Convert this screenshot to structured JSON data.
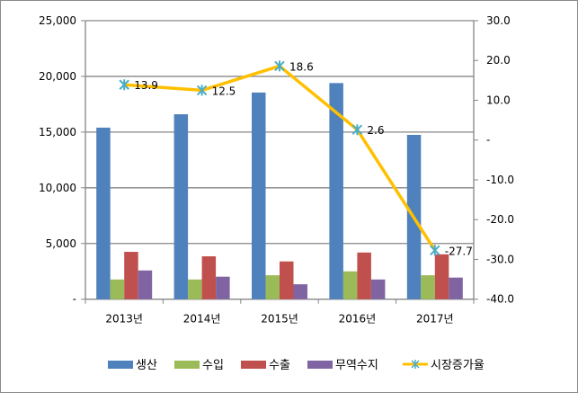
{
  "chart_data": {
    "type": "bar",
    "categories": [
      "2013년",
      "2014년",
      "2015년",
      "2016년",
      "2017년"
    ],
    "series": [
      {
        "name": "생산",
        "type": "bar",
        "axis": "left",
        "color": "#4f81bd",
        "values": [
          15400,
          16600,
          18550,
          19400,
          14750
        ]
      },
      {
        "name": "수입",
        "type": "bar",
        "axis": "left",
        "color": "#9bbb59",
        "values": [
          1770,
          1770,
          2150,
          2500,
          2150
        ]
      },
      {
        "name": "수출",
        "type": "bar",
        "axis": "left",
        "color": "#c0504d",
        "values": [
          4250,
          3850,
          3390,
          4190,
          4030
        ]
      },
      {
        "name": "무역수지",
        "type": "bar",
        "axis": "left",
        "color": "#8064a2",
        "values": [
          2580,
          2020,
          1340,
          1770,
          1940
        ]
      },
      {
        "name": "시장증가율",
        "type": "line",
        "axis": "right",
        "color": "#ffc000",
        "marker_color": "#4bacc6",
        "values": [
          13.9,
          12.5,
          18.6,
          2.6,
          -27.7
        ],
        "labels": [
          "13.9",
          "12.5",
          "18.6",
          "2.6",
          "-27.7"
        ]
      }
    ],
    "left_axis": {
      "ylim": [
        0,
        25000
      ],
      "ticks": [
        "-",
        "5,000",
        "10,000",
        "15,000",
        "20,000",
        "25,000"
      ]
    },
    "right_axis": {
      "ylim": [
        -40,
        30
      ],
      "ticks": [
        "-40.0",
        "-30.0",
        "-20.0",
        "-10.0",
        "-",
        "10.0",
        "20.0",
        "30.0"
      ]
    },
    "grid": true,
    "legend_position": "bottom"
  }
}
